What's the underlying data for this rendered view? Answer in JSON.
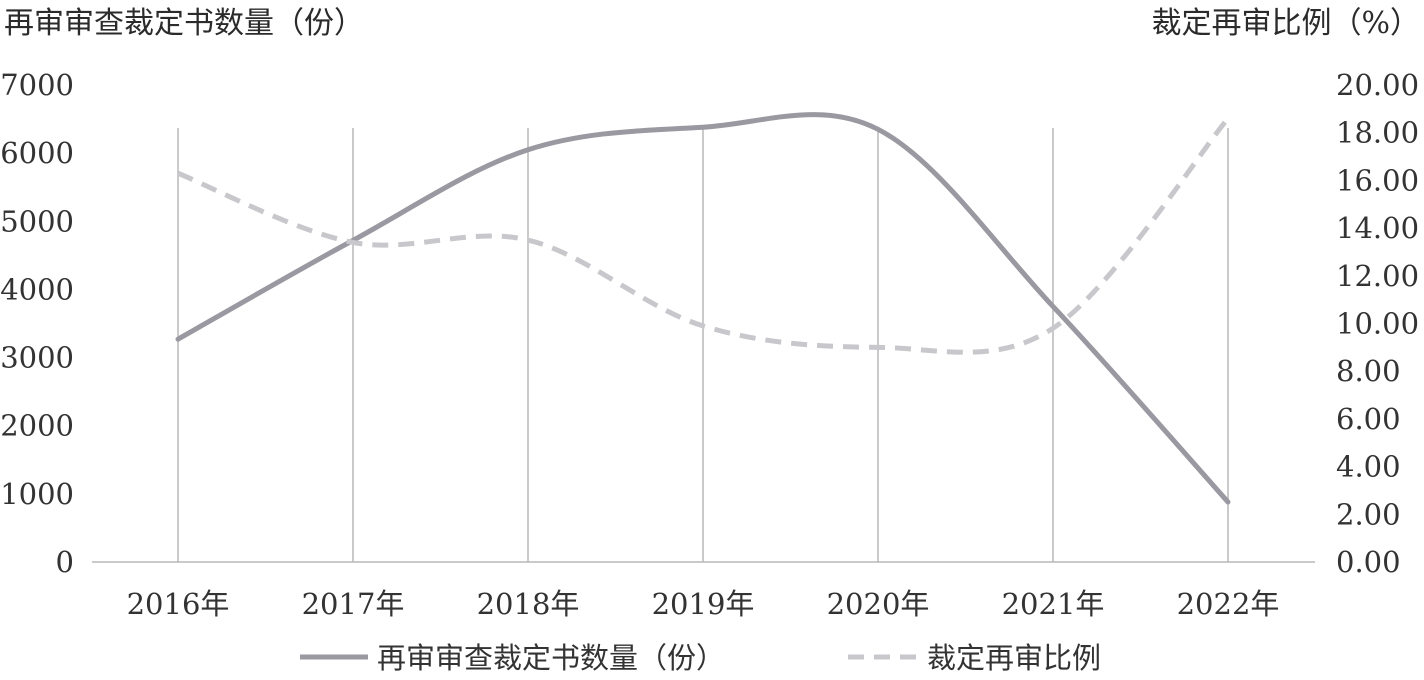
{
  "chart_data": {
    "type": "line",
    "categories": [
      "2016年",
      "2017年",
      "2018年",
      "2019年",
      "2020年",
      "2021年",
      "2022年"
    ],
    "y_left_label": "再审审查裁定书数量（份）",
    "y_right_label": "裁定再审比例（%）",
    "y_left_ticks": [
      "0",
      "1000",
      "2000",
      "3000",
      "4000",
      "5000",
      "6000",
      "7000"
    ],
    "y_right_ticks": [
      "0.00",
      "2.00",
      "4.00",
      "6.00",
      "8.00",
      "10.00",
      "12.00",
      "14.00",
      "16.00",
      "18.00",
      "20.00"
    ],
    "y_left_range": [
      0,
      7000
    ],
    "y_right_range": [
      0,
      20
    ],
    "series": [
      {
        "name": "再审审查裁定书数量（份）",
        "axis": "left",
        "style": "solid",
        "color": "#9a99a1",
        "values": [
          3270,
          4720,
          6050,
          6380,
          6350,
          3750,
          880
        ]
      },
      {
        "name": "裁定再审比例",
        "axis": "right",
        "style": "dashed",
        "color": "#c8c8cc",
        "values": [
          16.3,
          13.4,
          13.5,
          9.9,
          9.0,
          9.8,
          18.6
        ]
      }
    ],
    "grid": "vertical lines at categories",
    "legend": "bottom"
  }
}
